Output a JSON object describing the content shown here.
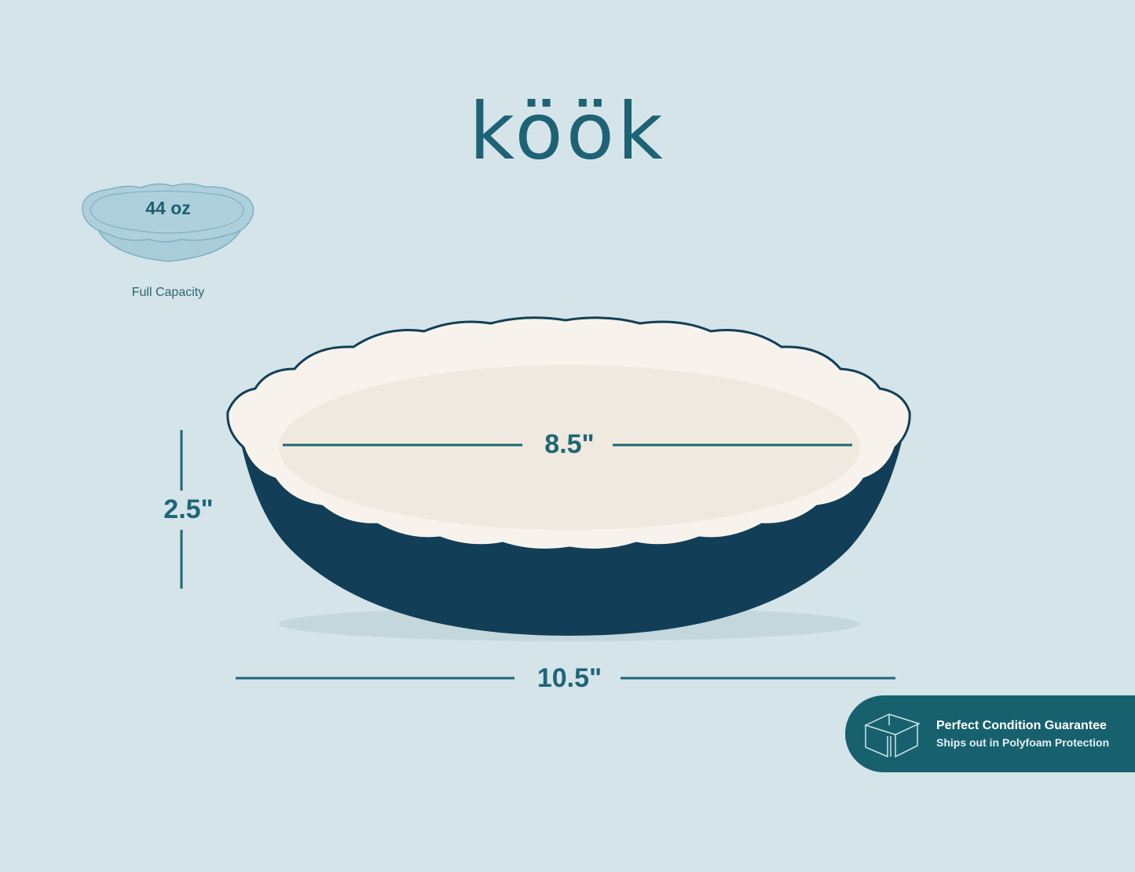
{
  "brand": {
    "logo_text": "köök"
  },
  "capacity": {
    "value": "44 oz",
    "label": "Full Capacity"
  },
  "dimensions": {
    "diameter": "8.5\"",
    "height": "2.5\"",
    "width": "10.5\""
  },
  "badge": {
    "title": "Perfect Condition Guarantee",
    "subtitle": "Ships out in Polyfoam Protection",
    "icon": "box-icon"
  },
  "colors": {
    "background": "#d4e4e8",
    "accent": "#17616f",
    "dish_exterior": "#123f57",
    "dish_interior": "#f7f3ec"
  }
}
